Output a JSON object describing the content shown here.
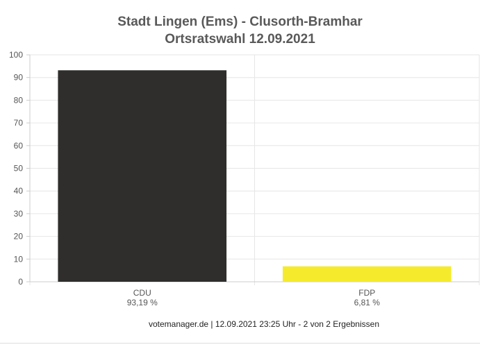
{
  "chart_data": {
    "type": "bar",
    "title": "Stadt Lingen (Ems) - Clusorth-Bramhar",
    "subtitle": "Ortsratswahl 12.09.2021",
    "categories": [
      "CDU",
      "FDP"
    ],
    "value_labels": [
      "93,19 %",
      "6,81 %"
    ],
    "values": [
      93.19,
      6.81
    ],
    "colors": [
      "#2f2e2c",
      "#f5eb2c"
    ],
    "ylim": [
      0,
      100
    ],
    "yticks": [
      "0",
      "10",
      "20",
      "30",
      "40",
      "50",
      "60",
      "70",
      "80",
      "90",
      "100"
    ],
    "grid": true,
    "legend": "none"
  },
  "footer": "votemanager.de | 12.09.2021 23:25 Uhr - 2 von 2 Ergebnissen"
}
